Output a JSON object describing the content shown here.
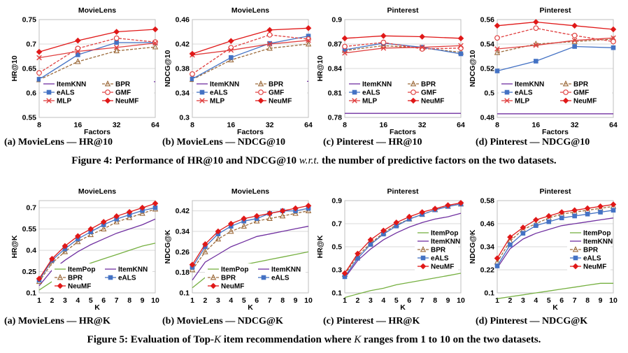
{
  "figures": {
    "fig4": {
      "prefix": "Figure 4: Performance of HR@10 and NDCG@10 ",
      "wrt": "w.r.t.",
      "suffix": " the number of predictive factors on the two datasets."
    },
    "fig5": {
      "prefix": "Figure 5: Evaluation of Top-",
      "k": "K",
      "middle": " item recommendation where ",
      "k2": "K",
      "suffix": " ranges from 1 to 10 on the two datasets."
    }
  },
  "subcaptions": [
    "(a) MovieLens — HR@10",
    "(b) MovieLens — NDCG@10",
    "(c) Pinterest — HR@10",
    "(d) Pinterest — NDCG@10",
    "(a) MovieLens — HR@K",
    "(b) MovieLens — NDCG@K",
    "(c) Pinterest — HR@K",
    "(d) Pinterest — NDCG@K"
  ],
  "series_styles": {
    "ItemPop": {
      "color": "#76b041",
      "marker": "none",
      "dash": false
    },
    "ItemKNN": {
      "color": "#7030a0",
      "marker": "none",
      "dash": false
    },
    "BPR": {
      "color": "#9c6a3a",
      "marker": "triangle-open",
      "dash": true
    },
    "eALS": {
      "color": "#4472c4",
      "marker": "square",
      "dash": false
    },
    "GMF": {
      "color": "#e04040",
      "marker": "circle-open",
      "dash": true
    },
    "MLP": {
      "color": "#e04040",
      "marker": "x",
      "dash": false
    },
    "NeuMF": {
      "color": "#e01818",
      "marker": "diamond",
      "dash": false
    }
  },
  "chart_data": [
    {
      "type": "line",
      "title": "MovieLens",
      "xlabel": "Factors",
      "ylabel": "HR@10",
      "x": [
        8,
        16,
        32,
        64
      ],
      "x_scale": "categorical",
      "ylim": [
        0.55,
        0.75
      ],
      "yticks": [
        "0.55",
        "0.6",
        "0.65",
        "0.7",
        "0.75"
      ],
      "legend": {
        "placement": "bottom",
        "columns": 2
      },
      "series": [
        {
          "name": "ItemKNN",
          "values": [
            0.623,
            0.623,
            0.623,
            0.623
          ]
        },
        {
          "name": "BPR",
          "values": [
            0.627,
            0.664,
            0.686,
            0.694
          ]
        },
        {
          "name": "eALS",
          "values": [
            0.628,
            0.678,
            0.703,
            0.703
          ]
        },
        {
          "name": "GMF",
          "values": [
            0.641,
            0.691,
            0.712,
            0.704
          ]
        },
        {
          "name": "MLP",
          "values": [
            0.672,
            0.685,
            0.693,
            0.702
          ]
        },
        {
          "name": "NeuMF",
          "values": [
            0.684,
            0.707,
            0.725,
            0.73
          ]
        }
      ]
    },
    {
      "type": "line",
      "title": "MovieLens",
      "xlabel": "Factors",
      "ylabel": "NDCG@10",
      "x": [
        8,
        16,
        32,
        64
      ],
      "x_scale": "categorical",
      "ylim": [
        0.3,
        0.46
      ],
      "yticks": [
        "0.3",
        "0.34",
        "0.38",
        "0.42",
        "0.46"
      ],
      "legend": {
        "placement": "bottom",
        "columns": 2
      },
      "series": [
        {
          "name": "ItemKNN",
          "values": [
            0.359,
            0.359,
            0.359,
            0.359
          ]
        },
        {
          "name": "BPR",
          "values": [
            0.362,
            0.394,
            0.413,
            0.42
          ]
        },
        {
          "name": "eALS",
          "values": [
            0.363,
            0.398,
            0.421,
            0.433
          ]
        },
        {
          "name": "GMF",
          "values": [
            0.371,
            0.414,
            0.435,
            0.428
          ]
        },
        {
          "name": "MLP",
          "values": [
            0.402,
            0.41,
            0.42,
            0.426
          ]
        },
        {
          "name": "NeuMF",
          "values": [
            0.404,
            0.425,
            0.443,
            0.446
          ]
        }
      ]
    },
    {
      "type": "line",
      "title": "Pinterest",
      "xlabel": "Factors",
      "ylabel": "HR@10",
      "x": [
        8,
        16,
        32,
        64
      ],
      "x_scale": "categorical",
      "ylim": [
        0.78,
        0.9
      ],
      "yticks": [
        "0.78",
        "0.81",
        "0.84",
        "0.87",
        "0.9"
      ],
      "legend": {
        "placement": "bottom",
        "columns": 2
      },
      "series": [
        {
          "name": "ItemKNN",
          "values": [
            0.785,
            0.785,
            0.785,
            0.785
          ]
        },
        {
          "name": "BPR",
          "values": [
            0.862,
            0.868,
            0.865,
            0.86
          ]
        },
        {
          "name": "eALS",
          "values": [
            0.863,
            0.871,
            0.866,
            0.858
          ]
        },
        {
          "name": "GMF",
          "values": [
            0.867,
            0.872,
            0.864,
            0.865
          ]
        },
        {
          "name": "MLP",
          "values": [
            0.859,
            0.865,
            0.866,
            0.868
          ]
        },
        {
          "name": "NeuMF",
          "values": [
            0.877,
            0.88,
            0.879,
            0.877
          ]
        }
      ]
    },
    {
      "type": "line",
      "title": "Pinterest",
      "xlabel": "Factors",
      "ylabel": "NDCG@10",
      "x": [
        8,
        16,
        32,
        64
      ],
      "x_scale": "categorical",
      "ylim": [
        0.48,
        0.56
      ],
      "yticks": [
        "0.48",
        "0.5",
        "0.52",
        "0.54",
        "0.56"
      ],
      "legend": {
        "placement": "bottom",
        "columns": 2
      },
      "series": [
        {
          "name": "ItemKNN",
          "values": [
            0.483,
            0.483,
            0.483,
            0.483
          ]
        },
        {
          "name": "BPR",
          "values": [
            0.533,
            0.54,
            0.542,
            0.544
          ]
        },
        {
          "name": "eALS",
          "values": [
            0.518,
            0.526,
            0.538,
            0.537
          ]
        },
        {
          "name": "GMF",
          "values": [
            0.545,
            0.553,
            0.547,
            0.542
          ]
        },
        {
          "name": "MLP",
          "values": [
            0.536,
            0.539,
            0.543,
            0.545
          ]
        },
        {
          "name": "NeuMF",
          "values": [
            0.555,
            0.558,
            0.555,
            0.552
          ]
        }
      ]
    },
    {
      "type": "line",
      "title": "MovieLens",
      "xlabel": "K",
      "ylabel": "HR@K",
      "x": [
        1,
        2,
        3,
        4,
        5,
        6,
        7,
        8,
        9,
        10
      ],
      "x_scale": "linear",
      "ylim": [
        0.1,
        0.75
      ],
      "yticks": [
        "0.1",
        "0.25",
        "0.4",
        "0.55",
        "0.7"
      ],
      "legend": {
        "placement": "lower-right",
        "columns": 2
      },
      "series": [
        {
          "name": "ItemPop",
          "values": [
            0.12,
            0.18,
            0.23,
            0.27,
            0.31,
            0.34,
            0.37,
            0.4,
            0.43,
            0.45
          ]
        },
        {
          "name": "ItemKNN",
          "values": [
            0.15,
            0.26,
            0.33,
            0.39,
            0.44,
            0.48,
            0.52,
            0.55,
            0.58,
            0.62
          ]
        },
        {
          "name": "BPR",
          "values": [
            0.18,
            0.31,
            0.39,
            0.46,
            0.51,
            0.55,
            0.6,
            0.63,
            0.66,
            0.69
          ]
        },
        {
          "name": "eALS",
          "values": [
            0.19,
            0.33,
            0.41,
            0.48,
            0.53,
            0.58,
            0.62,
            0.65,
            0.68,
            0.7
          ]
        },
        {
          "name": "NeuMF",
          "values": [
            0.2,
            0.34,
            0.43,
            0.5,
            0.55,
            0.6,
            0.64,
            0.67,
            0.7,
            0.73
          ]
        }
      ]
    },
    {
      "type": "line",
      "title": "MovieLens",
      "xlabel": "K",
      "ylabel": "NDCG@K",
      "x": [
        1,
        2,
        3,
        4,
        5,
        6,
        7,
        8,
        9,
        10
      ],
      "x_scale": "linear",
      "ylim": [
        0.1,
        0.46
      ],
      "yticks": [
        "0.1",
        "0.18",
        "0.26",
        "0.34",
        "0.42"
      ],
      "legend": {
        "placement": "lower-right",
        "columns": 2
      },
      "series": [
        {
          "name": "ItemPop",
          "values": [
            0.12,
            0.16,
            0.18,
            0.2,
            0.21,
            0.22,
            0.23,
            0.24,
            0.25,
            0.26
          ]
        },
        {
          "name": "ItemKNN",
          "values": [
            0.15,
            0.22,
            0.25,
            0.28,
            0.3,
            0.32,
            0.33,
            0.34,
            0.35,
            0.36
          ]
        },
        {
          "name": "BPR",
          "values": [
            0.19,
            0.26,
            0.31,
            0.34,
            0.36,
            0.38,
            0.39,
            0.4,
            0.41,
            0.42
          ]
        },
        {
          "name": "eALS",
          "values": [
            0.2,
            0.28,
            0.33,
            0.36,
            0.38,
            0.39,
            0.41,
            0.42,
            0.42,
            0.43
          ]
        },
        {
          "name": "NeuMF",
          "values": [
            0.21,
            0.29,
            0.34,
            0.37,
            0.39,
            0.4,
            0.41,
            0.42,
            0.43,
            0.44
          ]
        }
      ]
    },
    {
      "type": "line",
      "title": "Pinterest",
      "xlabel": "K",
      "ylabel": "HR@K",
      "x": [
        1,
        2,
        3,
        4,
        5,
        6,
        7,
        8,
        9,
        10
      ],
      "x_scale": "linear",
      "ylim": [
        0.1,
        0.9
      ],
      "yticks": [
        "0.1",
        "0.3",
        "0.5",
        "0.7",
        "0.9"
      ],
      "legend": {
        "placement": "middle-right",
        "columns": 1
      },
      "series": [
        {
          "name": "ItemPop",
          "values": [
            0.06,
            0.09,
            0.12,
            0.14,
            0.17,
            0.19,
            0.21,
            0.23,
            0.25,
            0.27
          ]
        },
        {
          "name": "ItemKNN",
          "values": [
            0.23,
            0.38,
            0.48,
            0.56,
            0.62,
            0.67,
            0.71,
            0.74,
            0.76,
            0.79
          ]
        },
        {
          "name": "BPR",
          "values": [
            0.26,
            0.42,
            0.53,
            0.62,
            0.69,
            0.74,
            0.78,
            0.82,
            0.85,
            0.87
          ]
        },
        {
          "name": "eALS",
          "values": [
            0.24,
            0.4,
            0.52,
            0.61,
            0.68,
            0.74,
            0.78,
            0.82,
            0.85,
            0.87
          ]
        },
        {
          "name": "NeuMF",
          "values": [
            0.27,
            0.44,
            0.56,
            0.64,
            0.71,
            0.76,
            0.8,
            0.83,
            0.86,
            0.88
          ]
        }
      ]
    },
    {
      "type": "line",
      "title": "Pinterest",
      "xlabel": "K",
      "ylabel": "NDCG@K",
      "x": [
        1,
        2,
        3,
        4,
        5,
        6,
        7,
        8,
        9,
        10
      ],
      "x_scale": "linear",
      "ylim": [
        0.1,
        0.58
      ],
      "yticks": [
        "0.1",
        "0.22",
        "0.34",
        "0.46",
        "0.58"
      ],
      "legend": {
        "placement": "middle-right",
        "columns": 1
      },
      "series": [
        {
          "name": "ItemPop",
          "values": [
            0.07,
            0.08,
            0.09,
            0.1,
            0.11,
            0.12,
            0.13,
            0.14,
            0.15,
            0.15
          ]
        },
        {
          "name": "ItemKNN",
          "values": [
            0.23,
            0.33,
            0.38,
            0.41,
            0.43,
            0.45,
            0.46,
            0.47,
            0.48,
            0.49
          ]
        },
        {
          "name": "BPR",
          "values": [
            0.26,
            0.37,
            0.43,
            0.46,
            0.49,
            0.51,
            0.52,
            0.53,
            0.54,
            0.55
          ]
        },
        {
          "name": "eALS",
          "values": [
            0.24,
            0.35,
            0.41,
            0.45,
            0.47,
            0.49,
            0.5,
            0.51,
            0.52,
            0.53
          ]
        },
        {
          "name": "NeuMF",
          "values": [
            0.28,
            0.39,
            0.44,
            0.48,
            0.5,
            0.52,
            0.53,
            0.54,
            0.55,
            0.56
          ]
        }
      ]
    }
  ]
}
